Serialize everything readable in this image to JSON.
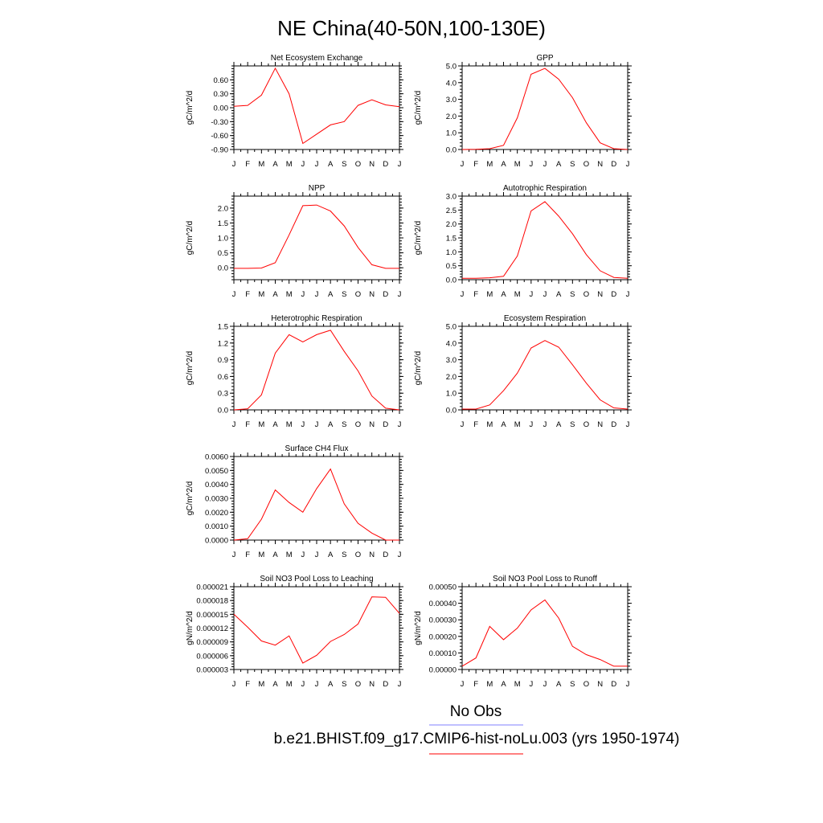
{
  "figure": {
    "title": "NE China(40-50N,100-130E)",
    "line_color": "#ff0000",
    "obs_color": "#8080ff",
    "legend": {
      "obs_label": "No Obs",
      "model_label": "b.e21.BHIST.f09_g17.CMIP6-hist-noLu.003 (yrs 1950-1974)"
    }
  },
  "chart_data": [
    {
      "type": "line",
      "title": "Net Ecosystem Exchange",
      "ylabel": "gC/m^2/d",
      "x": [
        "J",
        "F",
        "M",
        "A",
        "M",
        "J",
        "J",
        "A",
        "S",
        "O",
        "N",
        "D",
        "J"
      ],
      "ylim": [
        -0.9,
        0.9
      ],
      "yticks": [
        -0.9,
        -0.6,
        -0.3,
        0.0,
        0.3,
        0.6
      ],
      "ytick_labels": [
        "-0.90",
        "-0.60",
        "-0.30",
        "0.00",
        "0.30",
        "0.60"
      ],
      "series": [
        {
          "values": [
            0.03,
            0.05,
            0.27,
            0.85,
            0.3,
            -0.77,
            -0.57,
            -0.37,
            -0.3,
            0.05,
            0.17,
            0.06,
            0.02
          ]
        }
      ]
    },
    {
      "type": "line",
      "title": "GPP",
      "ylabel": "gC/m^2/d",
      "x": [
        "J",
        "F",
        "M",
        "A",
        "M",
        "J",
        "J",
        "A",
        "S",
        "O",
        "N",
        "D",
        "J"
      ],
      "ylim": [
        0,
        5
      ],
      "yticks": [
        0,
        1,
        2,
        3,
        4,
        5
      ],
      "ytick_labels": [
        "0.0",
        "1.0",
        "2.0",
        "3.0",
        "4.0",
        "5.0"
      ],
      "series": [
        {
          "values": [
            0.0,
            0.01,
            0.05,
            0.25,
            1.9,
            4.5,
            4.85,
            4.2,
            3.1,
            1.6,
            0.4,
            0.05,
            0.0
          ]
        }
      ]
    },
    {
      "type": "line",
      "title": "NPP",
      "ylabel": "gC/m^2/d",
      "x": [
        "J",
        "F",
        "M",
        "A",
        "M",
        "J",
        "J",
        "A",
        "S",
        "O",
        "N",
        "D",
        "J"
      ],
      "ylim": [
        -0.4,
        2.4
      ],
      "yticks": [
        0.0,
        0.5,
        1.0,
        1.5,
        2.0
      ],
      "ytick_labels": [
        "0.0",
        "0.5",
        "1.0",
        "1.5",
        "2.0"
      ],
      "series": [
        {
          "values": [
            -0.02,
            -0.02,
            -0.01,
            0.17,
            1.1,
            2.08,
            2.1,
            1.9,
            1.4,
            0.68,
            0.1,
            -0.02,
            -0.02
          ]
        }
      ]
    },
    {
      "type": "line",
      "title": "Autotrophic Respiration",
      "ylabel": "gC/m^2/d",
      "x": [
        "J",
        "F",
        "M",
        "A",
        "M",
        "J",
        "J",
        "A",
        "S",
        "O",
        "N",
        "D",
        "J"
      ],
      "ylim": [
        0,
        3
      ],
      "yticks": [
        0.0,
        0.5,
        1.0,
        1.5,
        2.0,
        2.5,
        3.0
      ],
      "ytick_labels": [
        "0.0",
        "0.5",
        "1.0",
        "1.5",
        "2.0",
        "2.5",
        "3.0"
      ],
      "series": [
        {
          "values": [
            0.05,
            0.05,
            0.07,
            0.12,
            0.85,
            2.47,
            2.8,
            2.28,
            1.65,
            0.9,
            0.32,
            0.08,
            0.05
          ]
        }
      ]
    },
    {
      "type": "line",
      "title": "Heterotrophic Respiration",
      "ylabel": "gC/m^2/d",
      "x": [
        "J",
        "F",
        "M",
        "A",
        "M",
        "J",
        "J",
        "A",
        "S",
        "O",
        "N",
        "D",
        "J"
      ],
      "ylim": [
        0,
        1.5
      ],
      "yticks": [
        0.0,
        0.3,
        0.6,
        0.9,
        1.2,
        1.5
      ],
      "ytick_labels": [
        "0.0",
        "0.3",
        "0.6",
        "0.9",
        "1.2",
        "1.5"
      ],
      "series": [
        {
          "values": [
            0.0,
            0.02,
            0.27,
            1.02,
            1.35,
            1.22,
            1.35,
            1.43,
            1.05,
            0.7,
            0.25,
            0.03,
            0.0
          ]
        }
      ]
    },
    {
      "type": "line",
      "title": "Ecosystem Respiration",
      "ylabel": "gC/m^2/d",
      "x": [
        "J",
        "F",
        "M",
        "A",
        "M",
        "J",
        "J",
        "A",
        "S",
        "O",
        "N",
        "D",
        "J"
      ],
      "ylim": [
        0,
        5
      ],
      "yticks": [
        0,
        1,
        2,
        3,
        4,
        5
      ],
      "ytick_labels": [
        "0.0",
        "1.0",
        "2.0",
        "3.0",
        "4.0",
        "5.0"
      ],
      "series": [
        {
          "values": [
            0.05,
            0.05,
            0.3,
            1.15,
            2.2,
            3.7,
            4.15,
            3.75,
            2.7,
            1.6,
            0.6,
            0.12,
            0.05
          ]
        }
      ]
    },
    {
      "type": "line",
      "title": "Surface CH4 Flux",
      "ylabel": "gC/m^2/d",
      "x": [
        "J",
        "F",
        "M",
        "A",
        "M",
        "J",
        "J",
        "A",
        "S",
        "O",
        "N",
        "D",
        "J"
      ],
      "ylim": [
        0,
        0.006
      ],
      "yticks": [
        0,
        0.001,
        0.002,
        0.003,
        0.004,
        0.005,
        0.006
      ],
      "ytick_labels": [
        "0.0000",
        "0.0010",
        "0.0020",
        "0.0030",
        "0.0040",
        "0.0050",
        "0.0060"
      ],
      "series": [
        {
          "values": [
            0.0,
            0.0001,
            0.0015,
            0.0036,
            0.0027,
            0.002,
            0.0037,
            0.0051,
            0.0026,
            0.0012,
            0.0005,
            0.0,
            0.0
          ]
        }
      ]
    },
    {
      "type": "line",
      "title": "Soil NO3 Pool Loss to Leaching",
      "ylabel": "gN/m^2/d",
      "x": [
        "J",
        "F",
        "M",
        "A",
        "M",
        "J",
        "J",
        "A",
        "S",
        "O",
        "N",
        "D",
        "J"
      ],
      "ylim": [
        3e-06,
        2.1e-05
      ],
      "yticks": [
        3e-06,
        6e-06,
        9e-06,
        1.2e-05,
        1.5e-05,
        1.8e-05,
        2.1e-05
      ],
      "ytick_labels": [
        "0.000003",
        "0.000006",
        "0.000009",
        "0.000012",
        "0.000015",
        "0.000018",
        "0.000021"
      ],
      "series": [
        {
          "values": [
            1.5e-05,
            1.22e-05,
            9.2e-06,
            8.3e-06,
            1.03e-05,
            4.4e-06,
            6.1e-06,
            9.1e-06,
            1.06e-05,
            1.29e-05,
            1.88e-05,
            1.87e-05,
            1.52e-05
          ]
        }
      ]
    },
    {
      "type": "line",
      "title": "Soil NO3 Pool Loss to Runoff",
      "ylabel": "gN/m^2/d",
      "x": [
        "J",
        "F",
        "M",
        "A",
        "M",
        "J",
        "J",
        "A",
        "S",
        "O",
        "N",
        "D",
        "J"
      ],
      "ylim": [
        0,
        0.0005
      ],
      "yticks": [
        0,
        0.0001,
        0.0002,
        0.0003,
        0.0004,
        0.0005
      ],
      "ytick_labels": [
        "0.00000",
        "0.00010",
        "0.00020",
        "0.00030",
        "0.00040",
        "0.00050"
      ],
      "series": [
        {
          "values": [
            2e-05,
            7e-05,
            0.00026,
            0.00018,
            0.00025,
            0.00036,
            0.00042,
            0.00031,
            0.00014,
            9e-05,
            6e-05,
            2e-05,
            2e-05
          ]
        }
      ]
    }
  ]
}
